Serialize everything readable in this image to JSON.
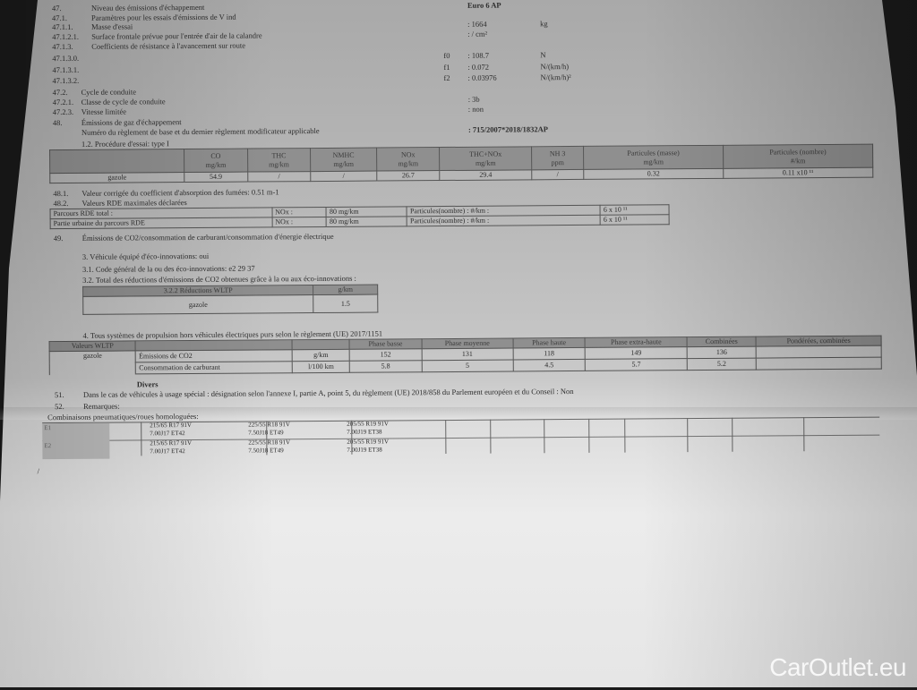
{
  "lines": [
    {
      "num": "47.",
      "label": "Niveau des émissions d'échappement",
      "value": "Euro 6 AP"
    },
    {
      "num": "47.1.",
      "label": "Paramètres pour les essais d'émissions de V ind"
    },
    {
      "num": "47.1.1.",
      "label": "Masse d'essai",
      "value": ": 1664",
      "unit": "kg"
    },
    {
      "num": "47.1.2.1.",
      "label": "Surface frontale prévue pour l'entrée d'air de la calandre",
      "value": ": / cm²"
    },
    {
      "num": "47.1.3.",
      "label": "Coefficients de résistance à l'avancement sur route"
    },
    {
      "num": "47.1.3.0.",
      "coef": "f0",
      "value": ": 108.7",
      "unit": "N"
    },
    {
      "num": "47.1.3.1.",
      "coef": "f1",
      "value": ": 0.072",
      "unit": "N/(km/h)"
    },
    {
      "num": "47.1.3.2.",
      "coef": "f2",
      "value": ": 0.03976",
      "unit": "N/(km/h)²"
    },
    {
      "num": "47.2.",
      "label": "Cycle de conduite"
    },
    {
      "num": "47.2.1.",
      "label": "Classe de cycle de conduite",
      "value": ": 3b"
    },
    {
      "num": "47.2.3.",
      "label": "Vitesse limitée",
      "value": ": non"
    },
    {
      "num": "48.",
      "label": "Émissions de gaz d'échappement"
    },
    {
      "num": "",
      "label": "Numéro du règlement de base et du dernier règlement modificateur applicable",
      "value": ": 715/2007*2018/1832AP"
    }
  ],
  "procedure": "1.2. Procédure d'essai: type I",
  "emissions": {
    "headers": [
      [
        "CO",
        "mg/km"
      ],
      [
        "THC",
        "mg/km"
      ],
      [
        "NMHC",
        "mg/km"
      ],
      [
        "NOx",
        "mg/km"
      ],
      [
        "THC+NOx",
        "mg/km"
      ],
      [
        "NH 3",
        "ppm"
      ],
      [
        "Particules (masse)",
        "mg/km"
      ],
      [
        "Particules (nombre)",
        "#/km"
      ]
    ],
    "row": [
      "gazole",
      "54.9",
      "/",
      "/",
      "26.7",
      "29.4",
      "/",
      "0.32",
      "0.11 x10 ¹¹"
    ]
  },
  "l481": {
    "num": "48.1.",
    "label": "Valeur corrigée du coefficient d'absorption des fumées: 0.51 m-1"
  },
  "l482": {
    "num": "48.2.",
    "label": "Valeurs RDE maximales déclarées"
  },
  "rde": [
    [
      "Parcours RDE total :",
      "NOx :",
      "80 mg/km",
      "Particules(nombre) : #/km :",
      "6 x 10 ¹¹"
    ],
    [
      "Partie urbaine du parcours RDE",
      "NOx :",
      "80 mg/km",
      "Particules(nombre) : #/km :",
      "6 x 10 ¹¹"
    ]
  ],
  "l49": {
    "num": "49.",
    "label": "Émissions de CO2/consommation de carburant/consommation d'énergie électrique"
  },
  "eco": [
    "3. Véhicule équipé d'éco-innovations: oui",
    "3.1. Code général de la ou des éco-innovations: e2 29 37",
    "3.2. Total des réductions d'émissions de CO2 obtenues grâce à la ou aux éco-innovations :"
  ],
  "eco_table": {
    "headers": [
      "3.2.2 Réductions WLTP",
      "g/km"
    ],
    "row": [
      "gazole",
      "1.5"
    ]
  },
  "l4": "4. Tous systèmes de propulsion hors véhicules électriques purs selon le règlement (UE) 2017/1151",
  "wltp": {
    "headers": [
      "Valeurs WLTP",
      "",
      "",
      "Phase basse",
      "Phase moyenne",
      "Phase haute",
      "Phase extra-haute",
      "Combinées",
      "Pondérées, combinées"
    ],
    "fuel": "gazole",
    "rows": [
      [
        "Émissions de CO2",
        "g/km",
        "152",
        "131",
        "118",
        "149",
        "136",
        ""
      ],
      [
        "Consommation de carburant",
        "l/100 km",
        "5.8",
        "5",
        "4.5",
        "5.7",
        "5.2",
        ""
      ]
    ]
  },
  "divers": "Divers",
  "l51": {
    "num": "51.",
    "label": "Dans le cas de véhicules à usage spécial : désignation selon l'annexe I, partie A, point 5, du règlement (UE) 2018/858 du Parlement européen et du Conseil : Non"
  },
  "l52": {
    "num": "52.",
    "label": "Remarques:"
  },
  "tires_title": "Combinaisons pneumatiques/roues homologuées:",
  "tires": [
    {
      "axle": "E1",
      "cells": [
        [
          "215/65 R17 91V",
          "7.00J17 ET42"
        ],
        [
          "225/55 R18 91V",
          "7.50J18 ET49"
        ],
        [
          "205/55 R19 91V",
          "7.00J19 ET38"
        ]
      ]
    },
    {
      "axle": "E2",
      "cells": [
        [
          "215/65 R17 91V",
          "7.00J17 ET42"
        ],
        [
          "225/55 R18 91V",
          "7.50J18 ET49"
        ],
        [
          "205/55 R19 91V",
          "7.00J19 ET38"
        ]
      ]
    }
  ],
  "slash": "/",
  "watermark": "CarOutlet.eu"
}
